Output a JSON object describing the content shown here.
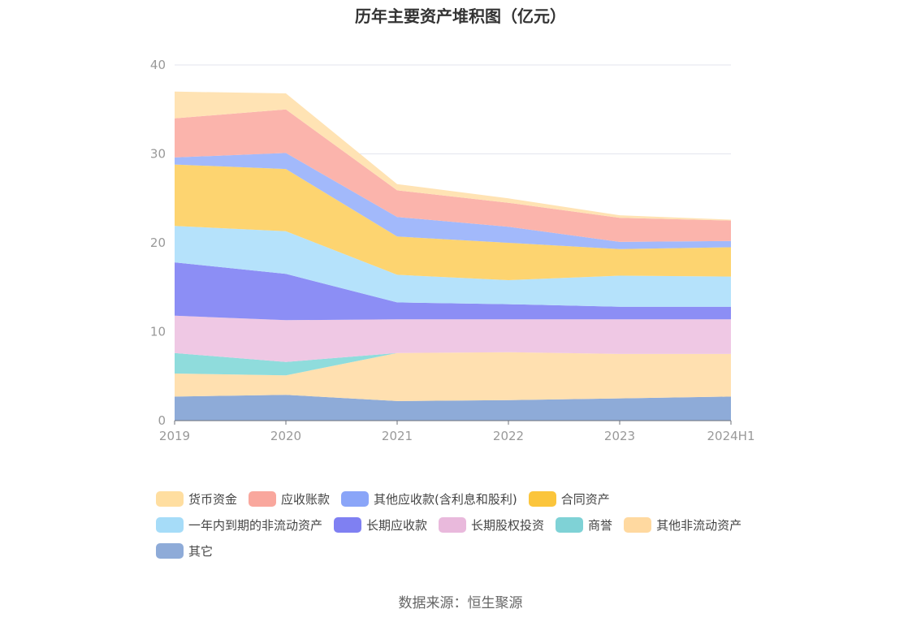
{
  "title": "历年主要资产堆积图（亿元）",
  "source": "数据来源：恒生聚源",
  "chart_data": {
    "type": "area",
    "stacked": true,
    "title": "历年主要资产堆积图（亿元）",
    "categories": [
      "2019",
      "2020",
      "2021",
      "2022",
      "2023",
      "2024H1"
    ],
    "ylim": [
      0,
      40
    ],
    "yticks": [
      0,
      10,
      20,
      30,
      40
    ],
    "grid": true,
    "legend_position": "bottom",
    "series": [
      {
        "name": "其它",
        "color": "#8eabd8",
        "values": [
          2.7,
          2.9,
          2.2,
          2.3,
          2.5,
          2.7
        ]
      },
      {
        "name": "其他非流动资产",
        "color": "#ffe0b0",
        "values": [
          2.6,
          2.2,
          5.4,
          5.4,
          5.0,
          4.8
        ]
      },
      {
        "name": "商誉",
        "color": "#8fdcdc",
        "values": [
          2.3,
          1.5,
          0.0,
          0.0,
          0.0,
          0.0
        ]
      },
      {
        "name": "长期股权投资",
        "color": "#efc8e4",
        "values": [
          4.2,
          4.7,
          3.8,
          3.7,
          3.9,
          3.9
        ]
      },
      {
        "name": "长期应收款",
        "color": "#8c8ef5",
        "values": [
          6.0,
          5.2,
          1.9,
          1.7,
          1.4,
          1.4
        ]
      },
      {
        "name": "一年内到期的非流动资产",
        "color": "#b5e2fb",
        "values": [
          4.1,
          4.8,
          3.1,
          2.7,
          3.5,
          3.4
        ]
      },
      {
        "name": "合同资产",
        "color": "#fdd470",
        "values": [
          6.9,
          7.0,
          4.3,
          4.2,
          3.0,
          3.3
        ]
      },
      {
        "name": "其他应收款(含利息和股利)",
        "color": "#a2b9fb",
        "values": [
          0.8,
          1.8,
          2.2,
          1.8,
          0.8,
          0.7
        ]
      },
      {
        "name": "应收账款",
        "color": "#fbb4ac",
        "values": [
          4.4,
          4.9,
          3.0,
          2.7,
          2.7,
          2.3
        ]
      },
      {
        "name": "货币资金",
        "color": "#ffe3b4",
        "values": [
          3.0,
          1.8,
          0.7,
          0.5,
          0.3,
          0.1
        ]
      }
    ],
    "legend": [
      {
        "name": "货币资金",
        "color": "#ffdea0"
      },
      {
        "name": "应收账款",
        "color": "#f9a79d"
      },
      {
        "name": "其他应收款(含利息和股利)",
        "color": "#8aa5f8"
      },
      {
        "name": "合同资产",
        "color": "#fbc53c"
      },
      {
        "name": "一年内到期的非流动资产",
        "color": "#a6dcf8"
      },
      {
        "name": "长期应收款",
        "color": "#7f80f2"
      },
      {
        "name": "长期股权投资",
        "color": "#e9b9dc"
      },
      {
        "name": "商誉",
        "color": "#7fd2d6"
      },
      {
        "name": "其他非流动资产",
        "color": "#ffd9a0"
      },
      {
        "name": "其它",
        "color": "#8eabd8"
      }
    ]
  }
}
